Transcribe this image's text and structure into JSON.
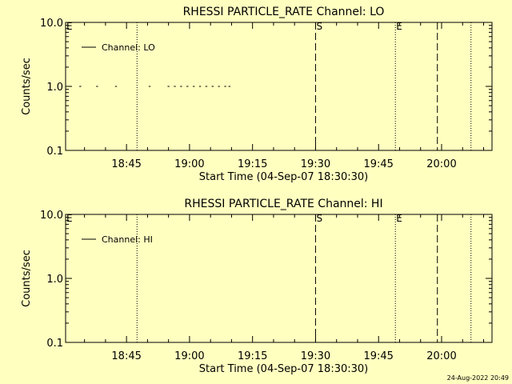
{
  "colors": {
    "background": "#ffffc0",
    "foreground": "#000000"
  },
  "footer_timestamp": "24-Aug-2022 20:49",
  "chart_data": [
    {
      "type": "line",
      "title": "RHESSI PARTICLE_RATE Channel: LO",
      "xlabel": "Start Time (04-Sep-07 18:30:30)",
      "ylabel": "Counts/sec",
      "scale_y": "log",
      "ylim": [
        0.1,
        10.0
      ],
      "y_ticks": [
        "0.1",
        "1.0",
        "10.0"
      ],
      "xlim": [
        "18:30:30",
        "20:12:00"
      ],
      "x_ticks": [
        "18:45",
        "19:00",
        "19:15",
        "19:30",
        "19:45",
        "20:00"
      ],
      "legend": {
        "position": "upper-left",
        "entries": [
          "Channel: LO"
        ]
      },
      "series": [
        {
          "name": "Channel: LO",
          "points": [
            [
              "18:34:00",
              1.0
            ],
            [
              "18:38:00",
              1.0
            ],
            [
              "18:42:30",
              1.0
            ],
            [
              "18:50:30",
              1.0
            ],
            [
              "18:55:00",
              1.0
            ],
            [
              "18:56:30",
              1.0
            ],
            [
              "18:58:00",
              1.0
            ],
            [
              "18:59:30",
              1.0
            ],
            [
              "19:01:00",
              1.0
            ],
            [
              "19:02:30",
              1.0
            ],
            [
              "19:04:00",
              1.0
            ],
            [
              "19:05:30",
              1.0
            ],
            [
              "19:07:00",
              1.0
            ],
            [
              "19:08:30",
              1.0
            ],
            [
              "19:09:30",
              1.0
            ]
          ]
        }
      ],
      "markers": [
        {
          "time": "18:47:30",
          "style": "dotted",
          "label": ""
        },
        {
          "time": "19:30:00",
          "style": "dashed",
          "label": "S"
        },
        {
          "time": "19:49:00",
          "style": "dotted",
          "label": "E"
        },
        {
          "time": "19:59:00",
          "style": "dashed",
          "label": ""
        },
        {
          "time": "20:07:00",
          "style": "dotted",
          "label": ""
        }
      ],
      "corner_label": "E"
    },
    {
      "type": "line",
      "title": "RHESSI PARTICLE_RATE Channel: HI",
      "xlabel": "Start Time (04-Sep-07 18:30:30)",
      "ylabel": "Counts/sec",
      "scale_y": "log",
      "ylim": [
        0.1,
        10.0
      ],
      "y_ticks": [
        "0.1",
        "1.0",
        "10.0"
      ],
      "xlim": [
        "18:30:30",
        "20:12:00"
      ],
      "x_ticks": [
        "18:45",
        "19:00",
        "19:15",
        "19:30",
        "19:45",
        "20:00"
      ],
      "legend": {
        "position": "upper-left",
        "entries": [
          "Channel: HI"
        ]
      },
      "series": [
        {
          "name": "Channel: HI",
          "points": []
        }
      ],
      "markers": [
        {
          "time": "18:47:30",
          "style": "dotted",
          "label": ""
        },
        {
          "time": "19:30:00",
          "style": "dashed",
          "label": "S"
        },
        {
          "time": "19:49:00",
          "style": "dotted",
          "label": "E"
        },
        {
          "time": "19:59:00",
          "style": "dashed",
          "label": ""
        },
        {
          "time": "20:07:00",
          "style": "dotted",
          "label": ""
        }
      ],
      "corner_label": "E"
    }
  ]
}
